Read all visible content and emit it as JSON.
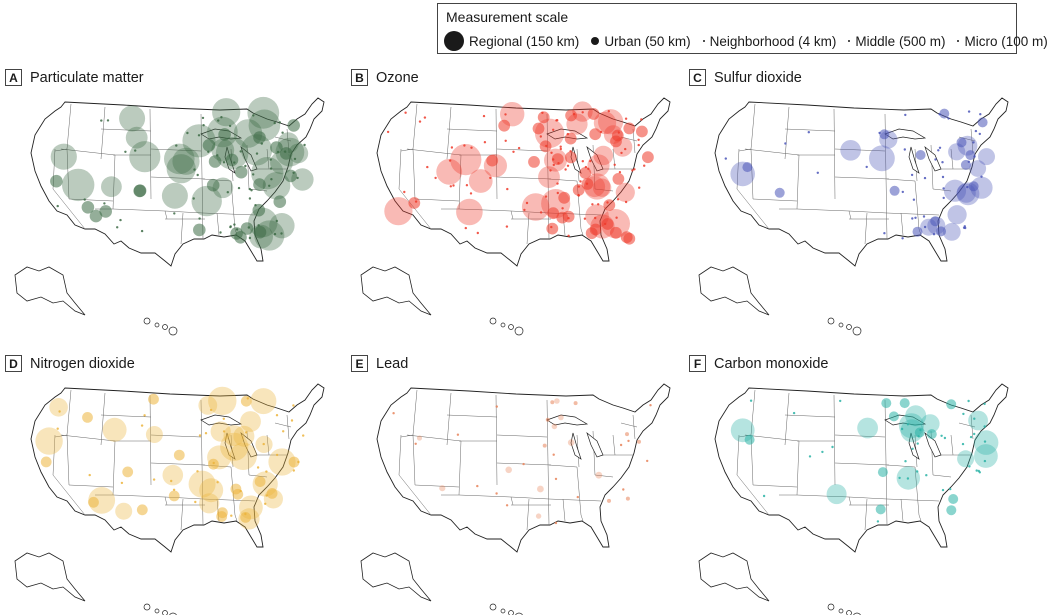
{
  "legend": {
    "title": "Measurement scale",
    "items": [
      {
        "label": "Regional (150 km)"
      },
      {
        "label": "Urban (50 km)"
      },
      {
        "label": "Neighborhood (4 km)"
      },
      {
        "label": "Middle (500 m)"
      },
      {
        "label": "Micro (100 m)"
      }
    ]
  },
  "panels": [
    {
      "letter": "A",
      "title": "Particulate matter",
      "color": "#3d6b45"
    },
    {
      "letter": "B",
      "title": "Ozone",
      "color": "#ee3a2a"
    },
    {
      "letter": "C",
      "title": "Sulfur dioxide",
      "color": "#4a55b8"
    },
    {
      "letter": "D",
      "title": "Nitrogen dioxide",
      "color": "#ecb43c"
    },
    {
      "letter": "E",
      "title": "Lead",
      "color": "#e8845a"
    },
    {
      "letter": "F",
      "title": "Carbon monoxide",
      "color": "#2ab3a6"
    }
  ]
}
